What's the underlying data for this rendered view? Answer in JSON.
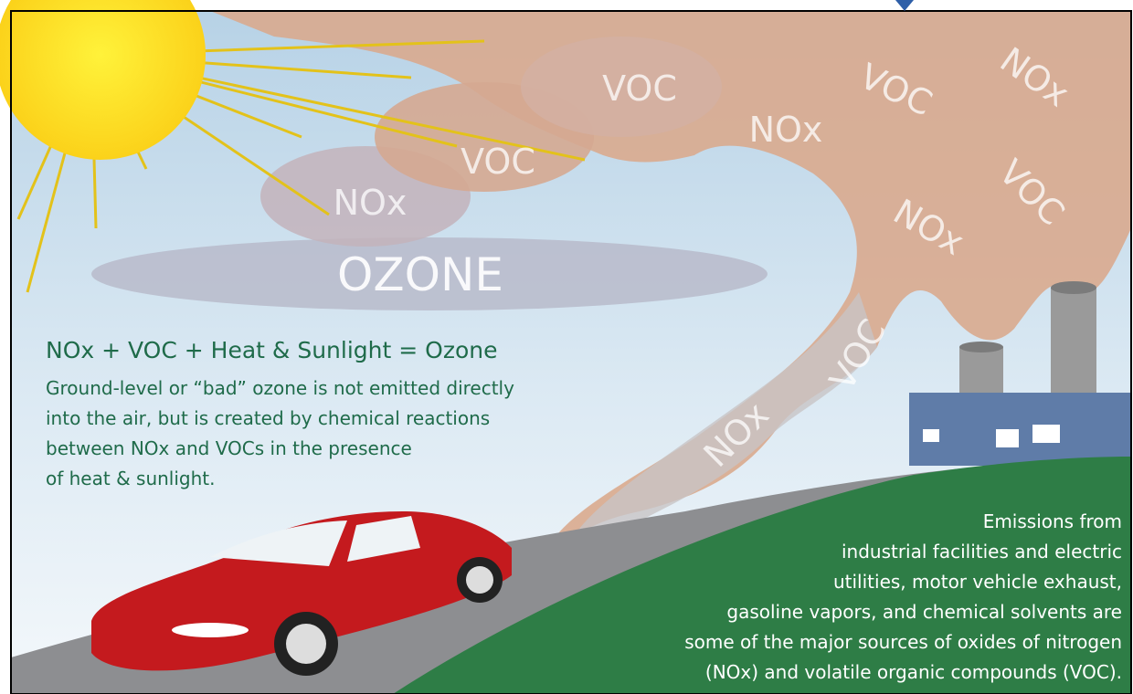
{
  "cloud_labels": [
    "VOC",
    "VOC",
    "NOx",
    "NOx",
    "VOC",
    "NOx",
    "VOC",
    "NOx",
    "VOC",
    "NOx"
  ],
  "ozone_label": "OZONE",
  "equation": "NOx + VOC + Heat & Sunlight = Ozone",
  "explanation": [
    "Ground-level or “bad” ozone is not emitted directly",
    "into the air, but is created by chemical reactions",
    "between NOx and VOCs in the presence",
    "of heat & sunlight."
  ],
  "emissions": [
    "Emissions from",
    "industrial facilities and electric",
    "utilities, motor vehicle exhaust,",
    "gasoline vapors, and chemical solvents are",
    "some of the major sources of oxides of nitrogen",
    "(NOx) and volatile organic compounds (VOC)."
  ]
}
